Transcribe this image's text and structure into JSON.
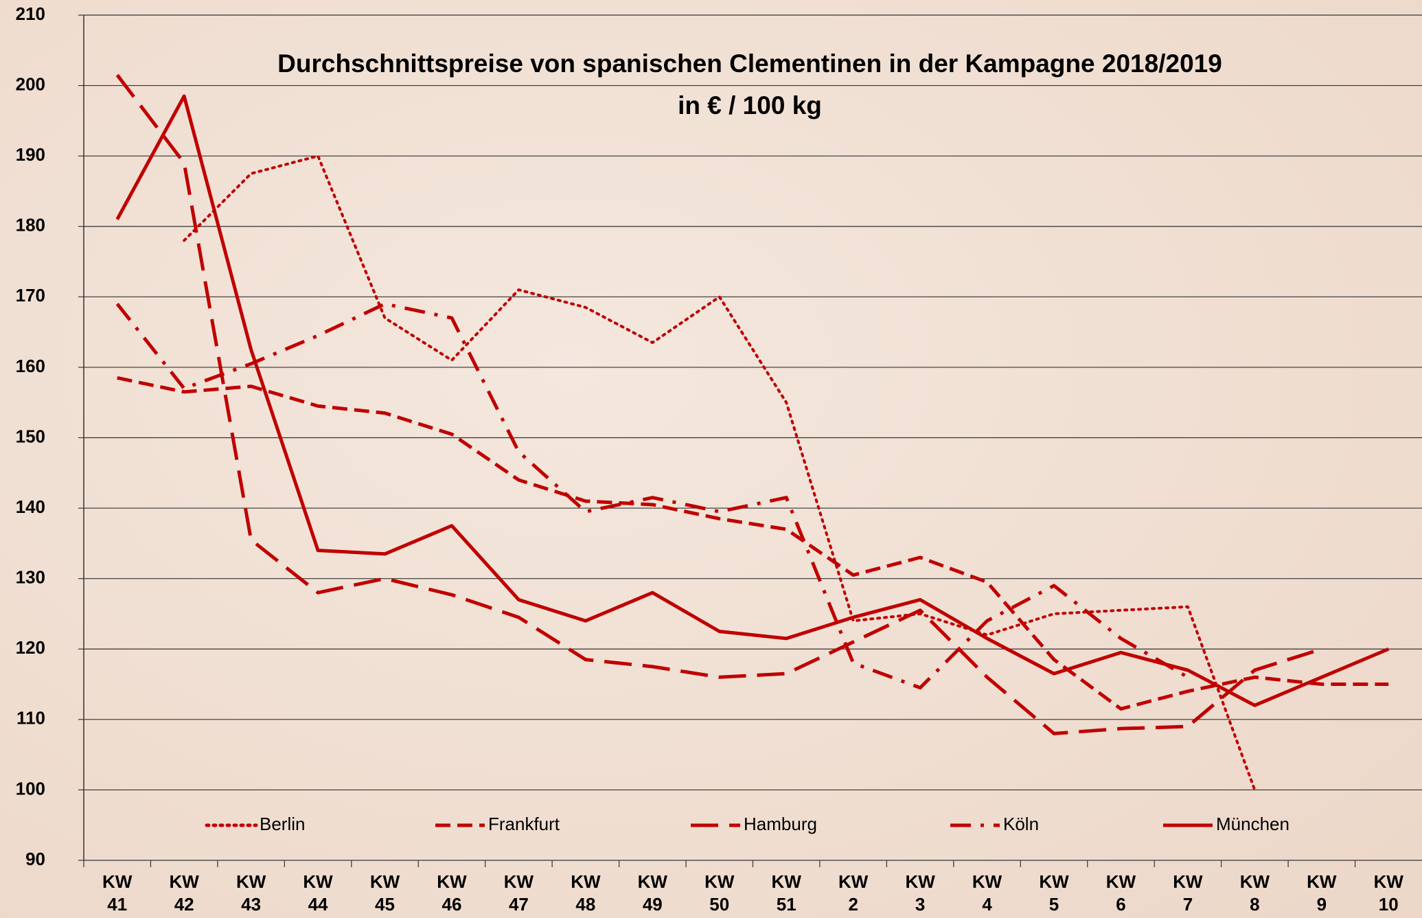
{
  "chart_data": {
    "type": "line",
    "title": "Durchschnittspreise von spanischen Clementinen in der Kampagne 2018/2019",
    "subtitle": "in € / 100 kg",
    "categories": [
      "KW 41",
      "KW 42",
      "KW 43",
      "KW 44",
      "KW 45",
      "KW 46",
      "KW 47",
      "KW 48",
      "KW 49",
      "KW 50",
      "KW 51",
      "KW 2",
      "KW 3",
      "KW 4",
      "KW 5",
      "KW 6",
      "KW 7",
      "KW 8",
      "KW 9",
      "KW 10"
    ],
    "ylim": [
      90,
      210
    ],
    "yticks": [
      90,
      100,
      110,
      120,
      130,
      140,
      150,
      160,
      170,
      180,
      190,
      200,
      210
    ],
    "grid": true,
    "legend": "bottom",
    "series": [
      {
        "name": "Berlin",
        "color": "#c00000",
        "dash": "dotted",
        "values": [
          null,
          178,
          187.5,
          190,
          167,
          161,
          171,
          168.5,
          163.5,
          170,
          155,
          124,
          125,
          122,
          125,
          125.5,
          126,
          100,
          null,
          null
        ]
      },
      {
        "name": "Frankfurt",
        "color": "#c00000",
        "dash": "short",
        "values": [
          158.5,
          156.5,
          157.3,
          154.5,
          153.5,
          150.5,
          144,
          141,
          140.5,
          138.5,
          137,
          130.5,
          133,
          129.5,
          118.5,
          111.5,
          114,
          116,
          115,
          115
        ]
      },
      {
        "name": "Hamburg",
        "color": "#c00000",
        "dash": "long",
        "values": [
          201.5,
          189,
          135.5,
          128,
          130,
          127.7,
          124.5,
          118.5,
          117.5,
          116,
          116.5,
          121,
          125.5,
          116,
          108,
          108.7,
          109,
          117,
          120,
          null
        ]
      },
      {
        "name": "Köln",
        "color": "#c00000",
        "dash": "dashdot",
        "values": [
          169,
          157,
          160.5,
          164.5,
          169,
          167,
          148,
          139.5,
          141.5,
          139.5,
          141.5,
          118,
          114.5,
          124,
          129,
          121.5,
          116,
          null,
          null,
          null
        ]
      },
      {
        "name": "München",
        "color": "#c00000",
        "dash": "solid",
        "values": [
          181,
          198.5,
          162.5,
          134,
          133.5,
          137.5,
          127,
          124,
          128,
          122.5,
          121.5,
          124.5,
          127,
          121.5,
          116.5,
          119.5,
          117,
          112,
          116,
          120
        ]
      }
    ]
  }
}
